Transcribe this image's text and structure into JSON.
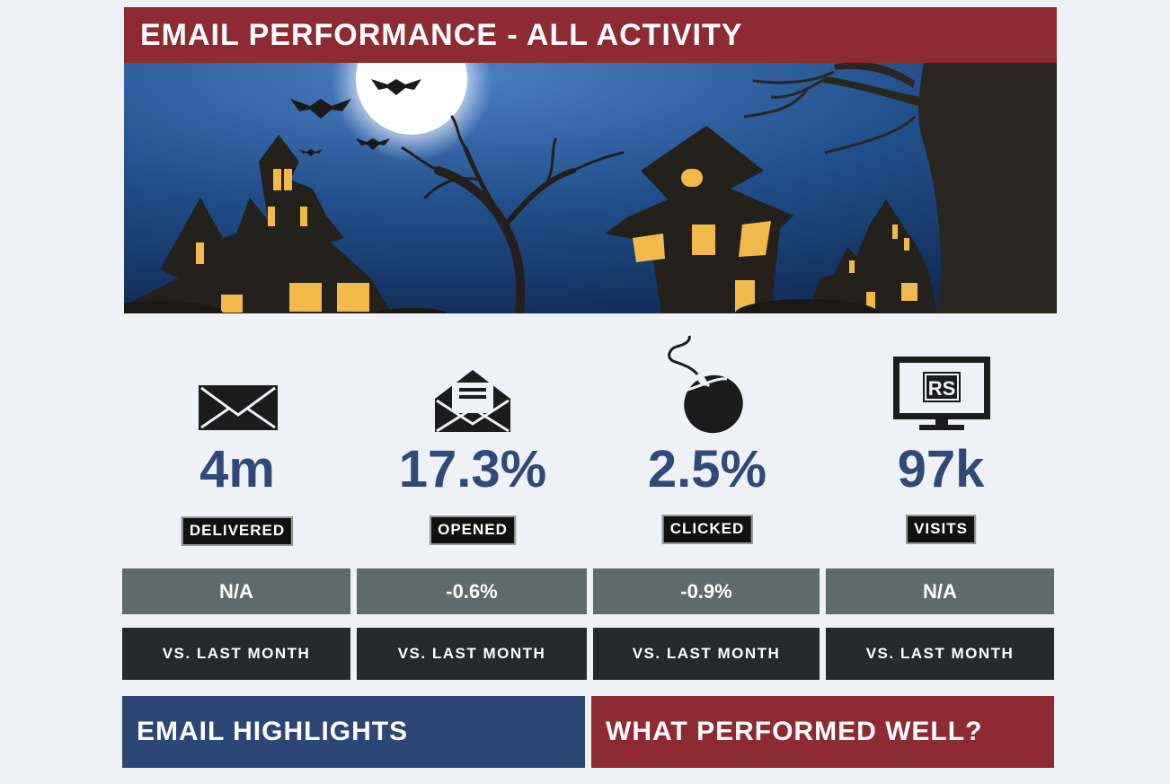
{
  "header": {
    "title": "EMAIL PERFORMANCE - ALL ACTIVITY"
  },
  "hero": {
    "image": "halloween-haunted-house-scene"
  },
  "stats": [
    {
      "icon": "envelope-icon",
      "value": "4m",
      "label": "DELIVERED",
      "change": "N/A",
      "comparison": "VS. LAST MONTH"
    },
    {
      "icon": "open-envelope-icon",
      "value": "17.3%",
      "label": "OPENED",
      "change": "-0.6%",
      "comparison": "VS. LAST MONTH"
    },
    {
      "icon": "mouse-icon",
      "value": "2.5%",
      "label": "CLICKED",
      "change": "-0.9%",
      "comparison": "VS. LAST MONTH"
    },
    {
      "icon": "monitor-rs-icon",
      "value": "97k",
      "label": "VISITS",
      "change": "N/A",
      "comparison": "VS. LAST MONTH",
      "monitor_text": "RS"
    }
  ],
  "sections": {
    "highlights": "EMAIL HIGHLIGHTS",
    "performed_well": "WHAT PERFORMED WELL?"
  },
  "colors": {
    "title_bg": "#8e2a31",
    "value_text": "#2f4a78",
    "change_bg": "#5e6a6d",
    "vs_bg": "#262a2c",
    "highlights_bg": "#2c4676",
    "performed_bg": "#8e2a31"
  }
}
